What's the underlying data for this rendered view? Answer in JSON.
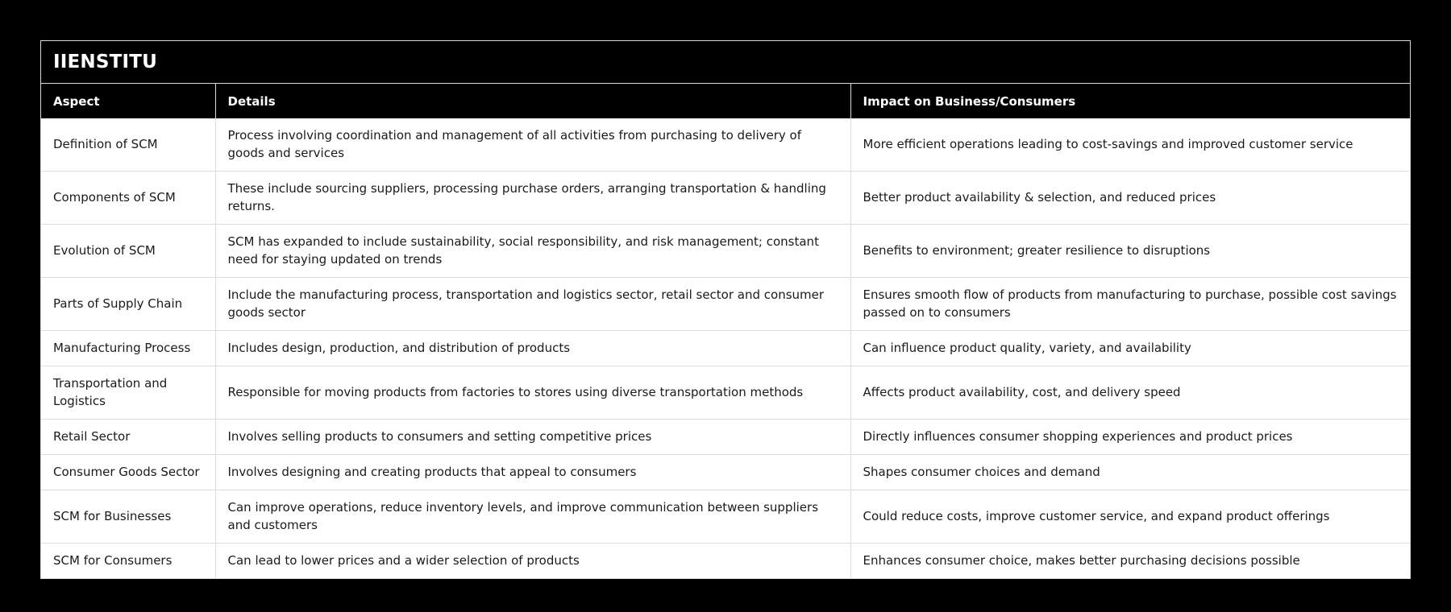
{
  "title": "IIENSTITU",
  "columns": {
    "aspect": "Aspect",
    "details": "Details",
    "impact": "Impact on Business/Consumers"
  },
  "rows": [
    {
      "aspect": "Definition of SCM",
      "details": "Process involving coordination and management of all activities from purchasing to delivery of goods and services",
      "impact": "More efficient operations leading to cost-savings and improved customer service"
    },
    {
      "aspect": "Components of SCM",
      "details": "These include sourcing suppliers, processing purchase orders, arranging transportation & handling returns.",
      "impact": "Better product availability & selection, and reduced prices"
    },
    {
      "aspect": "Evolution of SCM",
      "details": "SCM has expanded to include sustainability, social responsibility, and risk management; constant need for staying updated on trends",
      "impact": "Benefits to environment; greater resilience to disruptions"
    },
    {
      "aspect": "Parts of Supply Chain",
      "details": "Include the manufacturing process, transportation and logistics sector, retail sector and consumer goods sector",
      "impact": "Ensures smooth flow of products from manufacturing to purchase, possible cost savings passed on to consumers"
    },
    {
      "aspect": "Manufacturing Process",
      "details": "Includes design, production, and distribution of products",
      "impact": "Can influence product quality, variety, and availability"
    },
    {
      "aspect": "Transportation and Logistics",
      "details": "Responsible for moving products from factories to stores using diverse transportation methods",
      "impact": "Affects product availability, cost, and delivery speed"
    },
    {
      "aspect": "Retail Sector",
      "details": "Involves selling products to consumers and setting competitive prices",
      "impact": "Directly influences consumer shopping experiences and product prices"
    },
    {
      "aspect": "Consumer Goods Sector",
      "details": "Involves designing and creating products that appeal to consumers",
      "impact": "Shapes consumer choices and demand"
    },
    {
      "aspect": "SCM for Businesses",
      "details": "Can improve operations, reduce inventory levels, and improve communication between suppliers and customers",
      "impact": "Could reduce costs, improve customer service, and expand product offerings"
    },
    {
      "aspect": "SCM for Consumers",
      "details": "Can lead to lower prices and a wider selection of products",
      "impact": "Enhances consumer choice, makes better purchasing decisions possible"
    }
  ],
  "colors": {
    "background": "#000000",
    "header_bg": "#000000",
    "header_text": "#ffffff",
    "body_bg": "#ffffff",
    "body_text": "#1a1a1a",
    "border": "#dcdcdc"
  }
}
